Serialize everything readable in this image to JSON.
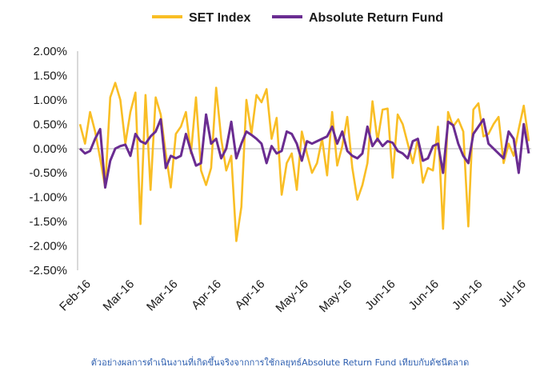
{
  "chart_data": {
    "type": "line",
    "title": "",
    "xlabel": "",
    "ylabel": "",
    "ylim": [
      -2.5,
      2.0
    ],
    "y_ticks": [
      "2.00%",
      "1.50%",
      "1.00%",
      "0.50%",
      "0.00%",
      "-0.50%",
      "-1.00%",
      "-1.50%",
      "-2.00%",
      "-2.50%"
    ],
    "x_tick_labels": [
      "Feb-16",
      "Mar-16",
      "Mar-16",
      "Apr-16",
      "Apr-16",
      "May-16",
      "May-16",
      "Jun-16",
      "Jun-16",
      "Jun-16",
      "Jul-16"
    ],
    "grid": false,
    "legend_position": "top",
    "series": [
      {
        "name": "SET Index",
        "color": "#F9BE25",
        "values": [
          0.5,
          0.1,
          0.75,
          0.35,
          -0.2,
          -0.8,
          1.05,
          1.35,
          1.0,
          0.1,
          0.75,
          1.15,
          -1.55,
          1.1,
          -0.85,
          1.05,
          0.7,
          -0.1,
          -0.8,
          0.3,
          0.45,
          0.75,
          -0.1,
          1.05,
          -0.45,
          -0.75,
          -0.4,
          1.25,
          0.2,
          -0.45,
          -0.15,
          -1.9,
          -1.2,
          1.0,
          0.3,
          1.1,
          0.95,
          1.22,
          0.2,
          0.63,
          -0.95,
          -0.3,
          -0.1,
          -0.85,
          0.35,
          -0.1,
          -0.5,
          -0.3,
          0.2,
          -0.55,
          0.75,
          -0.35,
          0.05,
          0.65,
          -0.4,
          -1.05,
          -0.75,
          -0.3,
          0.97,
          0.15,
          0.8,
          0.82,
          -0.6,
          0.7,
          0.5,
          0.1,
          -0.3,
          0.2,
          -0.7,
          -0.4,
          -0.45,
          0.45,
          -1.65,
          0.75,
          0.45,
          0.6,
          0.35,
          -1.6,
          0.8,
          0.93,
          0.25,
          0.3,
          0.5,
          0.65,
          -0.3,
          0.1,
          -0.15,
          0.4,
          0.88,
          0.15
        ]
      },
      {
        "name": "Absolute Return Fund",
        "color": "#6A2C91",
        "values": [
          0.0,
          -0.1,
          -0.05,
          0.2,
          0.4,
          -0.8,
          -0.25,
          0.0,
          0.05,
          0.08,
          -0.15,
          0.3,
          0.15,
          0.1,
          0.25,
          0.35,
          0.6,
          -0.4,
          -0.15,
          -0.2,
          -0.15,
          0.3,
          -0.05,
          -0.35,
          -0.3,
          0.7,
          0.1,
          0.2,
          -0.2,
          0.0,
          0.55,
          -0.2,
          0.1,
          0.35,
          0.28,
          0.2,
          0.1,
          -0.3,
          0.05,
          -0.1,
          -0.05,
          0.35,
          0.3,
          0.1,
          -0.25,
          0.15,
          0.1,
          0.15,
          0.2,
          0.25,
          0.45,
          0.1,
          0.35,
          -0.05,
          -0.15,
          -0.2,
          -0.1,
          0.45,
          0.05,
          0.2,
          0.05,
          0.15,
          0.12,
          -0.05,
          -0.1,
          -0.2,
          0.15,
          0.2,
          -0.25,
          -0.2,
          0.05,
          0.1,
          -0.5,
          0.55,
          0.48,
          0.1,
          -0.15,
          -0.3,
          0.3,
          0.45,
          0.6,
          0.1,
          0.0,
          -0.1,
          -0.2,
          0.35,
          0.2,
          -0.5,
          0.5,
          -0.1
        ]
      }
    ]
  },
  "caption": "ตัวอย่างผลการดำเนินงานที่เกิดขึ้นจริงจากการใช้กลยุทธ์Absolute Return Fund เทียบกับดัชนีตลาด"
}
